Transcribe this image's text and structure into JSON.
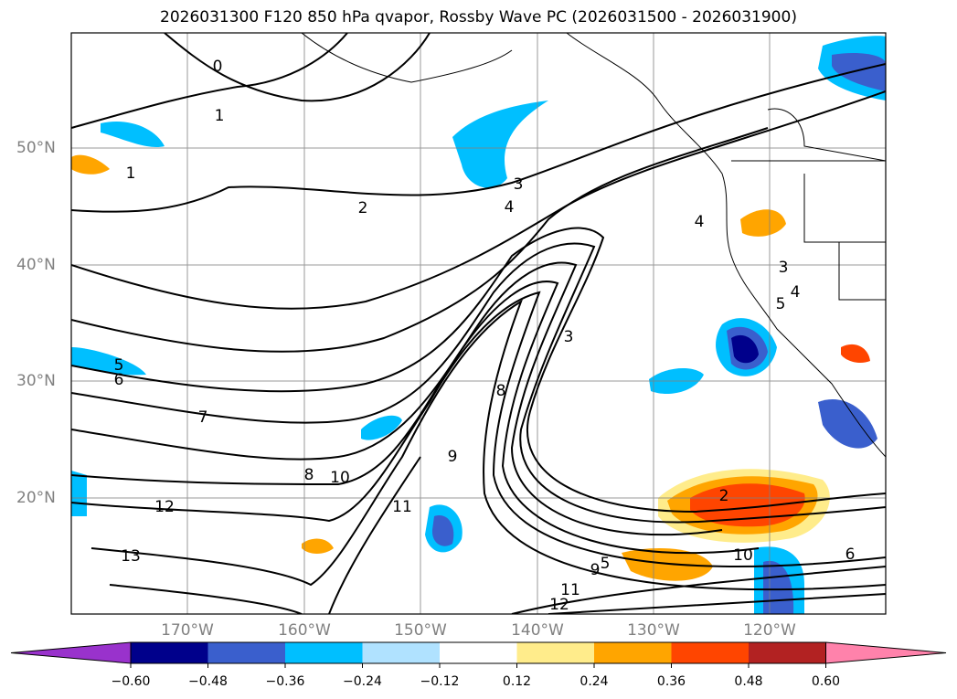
{
  "title": "2026031300 F120 850 hPa qvapor, Rossby Wave PC (2026031500 - 2026031900)",
  "lat_labels": [
    "50°N",
    "40°N",
    "30°N",
    "20°N"
  ],
  "lon_labels": [
    "170°W",
    "160°W",
    "150°W",
    "140°W",
    "130°W",
    "120°W"
  ],
  "colorbar": {
    "ticks": [
      "−0.60",
      "−0.48",
      "−0.36",
      "−0.24",
      "−0.12",
      "0.12",
      "0.24",
      "0.36",
      "0.48",
      "0.60"
    ],
    "colors": [
      "#9932CC",
      "#00008B",
      "#3A5FCD",
      "#00BFFF",
      "#B0E2FF",
      "#FFFFFF",
      "#FFEC8B",
      "#FFA500",
      "#FF4500",
      "#B22222",
      "#FF82AB"
    ]
  },
  "contour_labels": [
    "0",
    "1",
    "1",
    "2",
    "3",
    "4",
    "4",
    "5",
    "6",
    "7",
    "8",
    "9",
    "10",
    "11",
    "12",
    "13",
    "3",
    "8",
    "9",
    "10",
    "11",
    "12",
    "5",
    "6",
    "2",
    "3",
    "4",
    "5"
  ]
}
